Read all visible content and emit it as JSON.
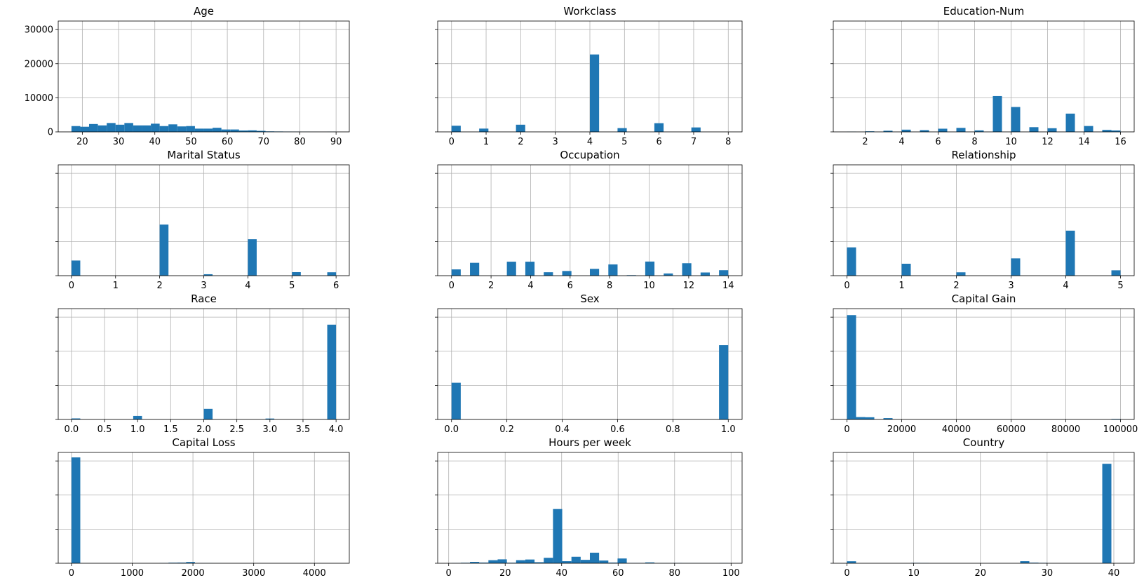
{
  "chart_data": [
    {
      "type": "bar",
      "title": "Age",
      "xlim": [
        13.35,
        93.65
      ],
      "ylim": [
        0,
        32500
      ],
      "bin_width": 2.433,
      "x": [
        18.22,
        20.65,
        23.08,
        25.52,
        27.95,
        30.38,
        32.82,
        35.25,
        37.68,
        40.12,
        42.55,
        44.98,
        47.42,
        49.85,
        52.28,
        54.72,
        57.15,
        59.58,
        62.02,
        64.45,
        66.88,
        69.32,
        71.75,
        74.18,
        76.62,
        79.05,
        81.48,
        83.92,
        86.35,
        88.78
      ],
      "values": [
        1700,
        1500,
        2300,
        1900,
        2600,
        2100,
        2600,
        1900,
        1900,
        2400,
        1700,
        2200,
        1600,
        1700,
        950,
        950,
        1200,
        700,
        700,
        400,
        450,
        300,
        150,
        120,
        80,
        60,
        40,
        20,
        10,
        40
      ],
      "xticks": [
        20,
        30,
        40,
        50,
        60,
        70,
        80,
        90
      ],
      "xtick_labels": [
        "20",
        "30",
        "40",
        "50",
        "60",
        "70",
        "80",
        "90"
      ],
      "yticks": [
        0,
        10000,
        20000,
        30000
      ],
      "ytick_labels": [
        "0",
        "10000",
        "20000",
        "30000"
      ],
      "color": "#1f77b4",
      "grid": true
    },
    {
      "type": "bar",
      "title": "Workclass",
      "xlim": [
        -0.4,
        8.4
      ],
      "ylim": [
        0,
        32500
      ],
      "bin_width": 0.267,
      "x": [
        0.133,
        0.933,
        1.997,
        4.133,
        4.933,
        5.997,
        7.067
      ],
      "values": [
        1800,
        960,
        2100,
        22700,
        1100,
        2550,
        1300
      ],
      "xticks": [
        0,
        1,
        2,
        3,
        4,
        5,
        6,
        7,
        8
      ],
      "xtick_labels": [
        "0",
        "1",
        "2",
        "3",
        "4",
        "5",
        "6",
        "7",
        "8"
      ],
      "color": "#1f77b4",
      "grid": true
    },
    {
      "type": "bar",
      "title": "Education-Num",
      "xlim": [
        0.25,
        16.75
      ],
      "ylim": [
        0,
        32500
      ],
      "bin_width": 0.5,
      "x": [
        1.25,
        2.25,
        3.25,
        4.25,
        5.25,
        6.25,
        7.25,
        8.25,
        9.25,
        10.25,
        11.25,
        12.25,
        13.25,
        14.25,
        15.25,
        15.75
      ],
      "values": [
        50,
        170,
        330,
        650,
        510,
        930,
        1170,
        430,
        10500,
        7290,
        1380,
        1070,
        5350,
        1720,
        580,
        410
      ],
      "xticks": [
        2,
        4,
        6,
        8,
        10,
        12,
        14,
        16
      ],
      "xtick_labels": [
        "2",
        "4",
        "6",
        "8",
        "10",
        "12",
        "14",
        "16"
      ],
      "color": "#1f77b4",
      "grid": true
    },
    {
      "type": "bar",
      "title": "Marital Status",
      "xlim": [
        -0.3,
        6.3
      ],
      "ylim": [
        0,
        32500
      ],
      "bin_width": 0.2,
      "x": [
        0.1,
        2.1,
        3.1,
        4.1,
        5.1,
        5.9
      ],
      "values": [
        4440,
        14980,
        420,
        10680,
        1030,
        990
      ],
      "xticks": [
        0,
        1,
        2,
        3,
        4,
        5,
        6
      ],
      "xtick_labels": [
        "0",
        "1",
        "2",
        "3",
        "4",
        "5",
        "6"
      ],
      "color": "#1f77b4",
      "grid": true
    },
    {
      "type": "bar",
      "title": "Occupation",
      "xlim": [
        -0.7,
        14.7
      ],
      "ylim": [
        0,
        32500
      ],
      "bin_width": 0.467,
      "x": [
        0.233,
        1.167,
        2.1,
        3.033,
        3.967,
        4.9,
        5.833,
        7.233,
        8.167,
        9.1,
        10.033,
        10.967,
        11.9,
        12.833,
        13.767
      ],
      "values": [
        1840,
        3770,
        9,
        4100,
        4100,
        1000,
        1370,
        2000,
        3300,
        150,
        4140,
        650,
        3650,
        930,
        1600
      ],
      "xticks": [
        0,
        2,
        4,
        6,
        8,
        10,
        12,
        14
      ],
      "xtick_labels": [
        "0",
        "2",
        "4",
        "6",
        "8",
        "10",
        "12",
        "14"
      ],
      "color": "#1f77b4",
      "grid": true
    },
    {
      "type": "bar",
      "title": "Relationship",
      "xlim": [
        -0.25,
        5.25
      ],
      "ylim": [
        0,
        32500
      ],
      "bin_width": 0.167,
      "x": [
        0.083,
        1.083,
        2.083,
        3.083,
        4.083,
        4.917
      ],
      "values": [
        8300,
        3500,
        980,
        5070,
        13200,
        1570
      ],
      "xticks": [
        0,
        1,
        2,
        3,
        4,
        5
      ],
      "xtick_labels": [
        "0",
        "1",
        "2",
        "3",
        "4",
        "5"
      ],
      "color": "#1f77b4",
      "grid": true
    },
    {
      "type": "bar",
      "title": "Race",
      "xlim": [
        -0.2,
        4.2
      ],
      "ylim": [
        0,
        32500
      ],
      "bin_width": 0.133,
      "x": [
        0.067,
        1.0,
        2.067,
        3.0,
        3.933
      ],
      "values": [
        310,
        1040,
        3120,
        270,
        27800
      ],
      "xticks": [
        0,
        0.5,
        1,
        1.5,
        2,
        2.5,
        3,
        3.5,
        4
      ],
      "xtick_labels": [
        "0.0",
        "0.5",
        "1.0",
        "1.5",
        "2.0",
        "2.5",
        "3.0",
        "3.5",
        "4.0"
      ],
      "color": "#1f77b4",
      "grid": true
    },
    {
      "type": "bar",
      "title": "Sex",
      "xlim": [
        -0.05,
        1.05
      ],
      "ylim": [
        0,
        32500
      ],
      "bin_width": 0.0333,
      "x": [
        0.0167,
        0.9833
      ],
      "values": [
        10770,
        21790
      ],
      "xticks": [
        0,
        0.2,
        0.4,
        0.6,
        0.8,
        1
      ],
      "xtick_labels": [
        "0.0",
        "0.2",
        "0.4",
        "0.6",
        "0.8",
        "1.0"
      ],
      "color": "#1f77b4",
      "grid": true
    },
    {
      "type": "bar",
      "title": "Capital Gain",
      "xlim": [
        -5000,
        105000
      ],
      "ylim": [
        0,
        32500
      ],
      "bin_width": 3333,
      "x": [
        1667,
        5000,
        8333,
        15000,
        98333
      ],
      "values": [
        30600,
        700,
        650,
        400,
        160
      ],
      "xticks": [
        0,
        20000,
        40000,
        60000,
        80000,
        100000
      ],
      "xtick_labels": [
        "0",
        "20000",
        "40000",
        "60000",
        "80000",
        "100000"
      ],
      "color": "#1f77b4",
      "grid": true
    },
    {
      "type": "bar",
      "title": "Capital Loss",
      "xlim": [
        -218,
        4574
      ],
      "ylim": [
        0,
        32500
      ],
      "bin_width": 145.2,
      "x": [
        72.6,
        1524.6,
        1669.8,
        1815,
        1960.2,
        2105.4,
        2250.6,
        2395.8
      ],
      "values": [
        31040,
        80,
        170,
        200,
        370,
        60,
        40,
        20
      ],
      "xticks": [
        0,
        1000,
        2000,
        3000,
        4000
      ],
      "xtick_labels": [
        "0",
        "1000",
        "2000",
        "3000",
        "4000"
      ],
      "color": "#1f77b4",
      "grid": true
    },
    {
      "type": "bar",
      "title": "Hours per week",
      "xlim": [
        -3.9,
        103.9
      ],
      "ylim": [
        0,
        32500
      ],
      "bin_width": 3.267,
      "x": [
        2.63,
        5.9,
        9.17,
        12.43,
        15.7,
        18.97,
        22.23,
        25.5,
        28.77,
        32.03,
        35.3,
        38.57,
        41.83,
        45.1,
        48.37,
        51.63,
        54.9,
        58.17,
        61.43,
        64.7,
        67.97,
        71.23,
        74.5,
        77.77,
        81.03,
        84.3,
        87.57,
        90.83,
        94.1,
        97.37
      ],
      "values": [
        80,
        150,
        400,
        200,
        900,
        1150,
        160,
        900,
        1100,
        300,
        1600,
        15900,
        600,
        1900,
        1000,
        3100,
        800,
        200,
        1400,
        100,
        100,
        250,
        50,
        50,
        100,
        50,
        50,
        30,
        20,
        80
      ],
      "xticks": [
        0,
        20,
        40,
        60,
        80,
        100
      ],
      "xtick_labels": [
        "0",
        "20",
        "40",
        "60",
        "80",
        "100"
      ],
      "color": "#1f77b4",
      "grid": true
    },
    {
      "type": "bar",
      "title": "Country",
      "xlim": [
        -2.05,
        43.05
      ],
      "ylim": [
        0,
        32500
      ],
      "bin_width": 1.367,
      "x": [
        0.68,
        10.25,
        11.62,
        26.65,
        28.02,
        29.38,
        38.95
      ],
      "values": [
        580,
        120,
        80,
        600,
        180,
        120,
        29170
      ],
      "xticks": [
        0,
        10,
        20,
        30,
        40
      ],
      "xtick_labels": [
        "0",
        "10",
        "20",
        "30",
        "40"
      ],
      "color": "#1f77b4",
      "grid": true
    }
  ]
}
